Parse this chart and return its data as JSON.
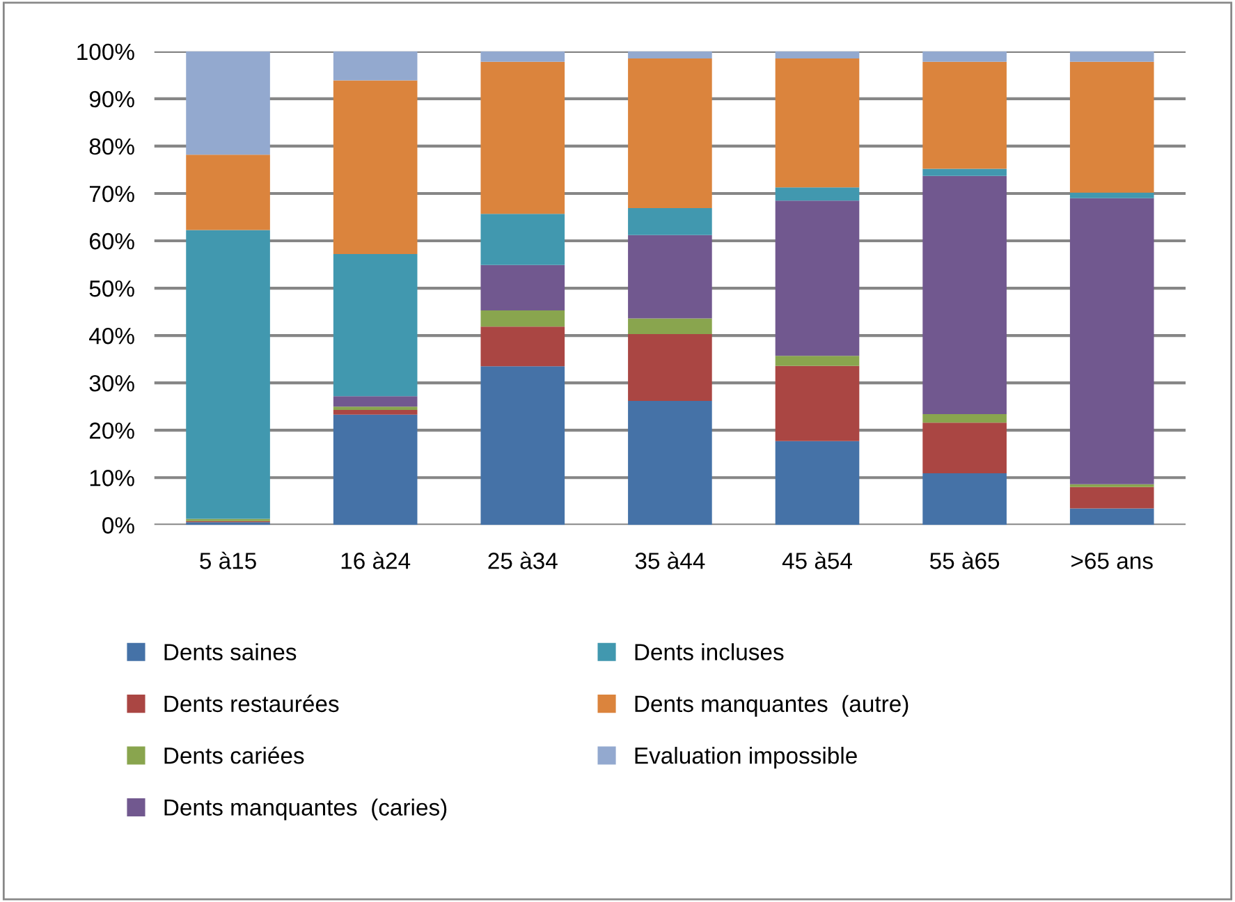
{
  "chart_data": {
    "type": "bar",
    "stacked": true,
    "categories": [
      "5 à15",
      "16 à24",
      "25 à34",
      "35 à44",
      "45 à54",
      "55 à65",
      ">65 ans"
    ],
    "series": [
      {
        "name": "Dents saines",
        "color": "#4572a7",
        "values": [
          0.6,
          23.3,
          33.5,
          26.2,
          17.7,
          10.9,
          3.5
        ]
      },
      {
        "name": "Dents restaurées",
        "color": "#aa4643",
        "values": [
          0.2,
          1.0,
          8.4,
          14.1,
          15.9,
          10.7,
          4.5
        ]
      },
      {
        "name": "Dents cariées",
        "color": "#89a54e",
        "values": [
          0.5,
          0.7,
          3.4,
          3.3,
          2.1,
          1.8,
          0.6
        ]
      },
      {
        "name": "Dents manquantes  (caries)",
        "color": "#71588f",
        "values": [
          0,
          2.2,
          9.6,
          17.6,
          32.8,
          50.3,
          60.4
        ]
      },
      {
        "name": "Dents incluses",
        "color": "#4198af",
        "values": [
          61.0,
          30.0,
          10.8,
          5.7,
          2.8,
          1.5,
          1.2
        ]
      },
      {
        "name": "Dents manquantes  (autre)",
        "color": "#db843d",
        "values": [
          15.9,
          36.7,
          32.1,
          31.6,
          27.2,
          22.6,
          27.6
        ]
      },
      {
        "name": "Evaluation impossible",
        "color": "#93a9cf",
        "values": [
          21.8,
          6.1,
          2.2,
          1.5,
          1.5,
          2.2,
          2.2
        ]
      }
    ],
    "ylim": [
      0,
      100
    ],
    "yticks": [
      {
        "value": 0,
        "label": "0%"
      },
      {
        "value": 10,
        "label": "10%"
      },
      {
        "value": 20,
        "label": "20%"
      },
      {
        "value": 30,
        "label": "30%"
      },
      {
        "value": 40,
        "label": "40%"
      },
      {
        "value": 50,
        "label": "50%"
      },
      {
        "value": 60,
        "label": "60%"
      },
      {
        "value": 70,
        "label": "70%"
      },
      {
        "value": 80,
        "label": "80%"
      },
      {
        "value": 90,
        "label": "90%"
      },
      {
        "value": 100,
        "label": "100%"
      }
    ],
    "grid": "y",
    "legend": "bottom"
  }
}
